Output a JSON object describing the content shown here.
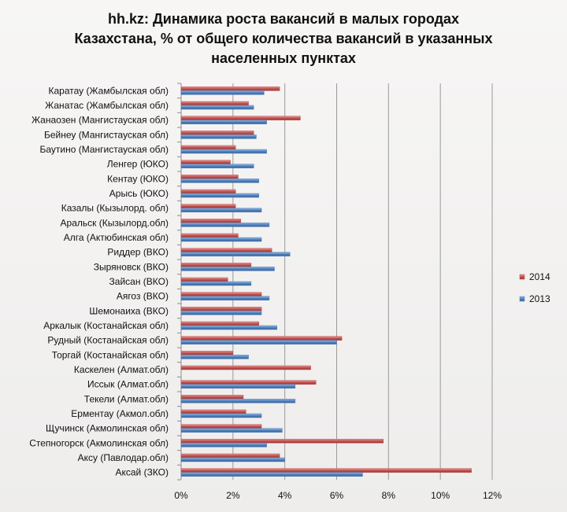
{
  "chart_data": {
    "type": "bar",
    "orientation": "horizontal",
    "title_lines": [
      "hh.kz: Динамика роста вакансий в малых городах",
      "Казахстана,  % от общего количества вакансий в указанных",
      "населенных пунктах"
    ],
    "xlim": [
      0,
      12
    ],
    "x_ticks": [
      "0%",
      "2%",
      "4%",
      "6%",
      "8%",
      "10%",
      "12%"
    ],
    "grid": true,
    "legend_position": "right",
    "categories": [
      "Каратау (Жамбылская обл)",
      "Жанатас (Жамбылская обл)",
      "Жанаозен (Мангистауская обл)",
      "Бейнеу (Мангистауская обл)",
      "Баутино (Мангистауская обл)",
      "Ленгер (ЮКО)",
      "Кентау (ЮКО)",
      "Арысь (ЮКО)",
      "Казалы (Кызылорд. обл)",
      "Аральск (Кызылорд.обл)",
      "Алга (Актюбинская обл)",
      "Риддер (ВКО)",
      "Зыряновск (ВКО)",
      "Зайсан (ВКО)",
      "Аягоз (ВКО)",
      "Шемонаиха (ВКО)",
      "Аркалык (Костанайская обл)",
      "Рудный (Костанайская обл)",
      "Торгай (Костанайская обл)",
      "Каскелен (Алмат.обл)",
      "Иссык (Алмат.обл)",
      "Текели (Алмат.обл)",
      "Ерментау (Акмол.обл)",
      "Щучинск (Акмолинская обл)",
      "Степногорск (Акмолинская обл)",
      "Аксу (Павлодар.обл)",
      "Аксай (ЗКО)"
    ],
    "series": [
      {
        "name": "2014",
        "color": "#c0504d",
        "values": [
          3.8,
          2.6,
          4.6,
          2.8,
          2.1,
          1.9,
          2.2,
          2.1,
          2.1,
          2.3,
          2.2,
          3.5,
          2.7,
          1.8,
          3.1,
          3.1,
          3.0,
          6.2,
          2.0,
          5.0,
          5.2,
          2.4,
          2.5,
          3.1,
          7.8,
          3.8,
          11.2
        ]
      },
      {
        "name": "2013",
        "color": "#4f81bd",
        "values": [
          3.2,
          2.8,
          3.3,
          2.9,
          3.3,
          2.8,
          3.0,
          3.0,
          3.1,
          3.4,
          3.1,
          4.2,
          3.6,
          2.7,
          3.4,
          3.1,
          3.7,
          6.0,
          2.6,
          0,
          4.4,
          4.4,
          3.1,
          3.9,
          3.3,
          4.0,
          7.0
        ]
      }
    ],
    "legend_order": [
      "2014",
      "2013"
    ]
  }
}
